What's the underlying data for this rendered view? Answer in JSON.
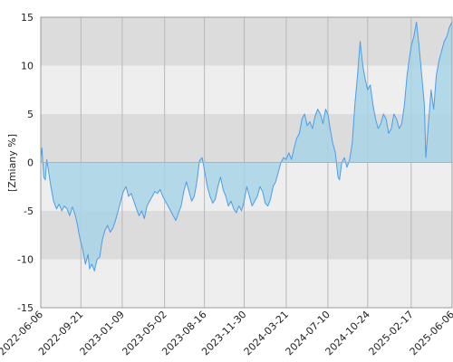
{
  "chart_data": {
    "type": "area",
    "ylabel": "[Zmiany %]",
    "ylim": [
      -15,
      15
    ],
    "y_ticks": [
      15,
      10,
      5,
      0,
      -5,
      -10,
      -15
    ],
    "x_ticks": [
      "2022-06-06",
      "2022-09-21",
      "2023-01-09",
      "2023-05-02",
      "2023-08-16",
      "2023-11-30",
      "2024-03-21",
      "2024-07-10",
      "2024-10-24",
      "2025-02-17",
      "2025-06-06"
    ],
    "x_range": [
      "2022-06-06",
      "2025-06-06"
    ],
    "grid": true,
    "colors": {
      "line": "#4d9de8",
      "fill": "#a8d4e6",
      "band_dark": "#dcdcdc",
      "band_light": "#eeeeee",
      "gridline": "#b8b8b8"
    },
    "series": [
      {
        "points": [
          [
            "2022-06-06",
            0.5
          ],
          [
            "2022-06-09",
            1.5
          ],
          [
            "2022-06-14",
            -1.5
          ],
          [
            "2022-06-18",
            -1.8
          ],
          [
            "2022-06-22",
            0.3
          ],
          [
            "2022-06-27",
            -1.0
          ],
          [
            "2022-07-03",
            -2.5
          ],
          [
            "2022-07-10",
            -4.0
          ],
          [
            "2022-07-18",
            -4.8
          ],
          [
            "2022-07-25",
            -4.3
          ],
          [
            "2022-08-01",
            -5.0
          ],
          [
            "2022-08-08",
            -4.5
          ],
          [
            "2022-08-15",
            -4.8
          ],
          [
            "2022-08-22",
            -5.5
          ],
          [
            "2022-08-29",
            -4.6
          ],
          [
            "2022-09-05",
            -5.3
          ],
          [
            "2022-09-12",
            -6.5
          ],
          [
            "2022-09-19",
            -8.0
          ],
          [
            "2022-09-26",
            -9.0
          ],
          [
            "2022-10-03",
            -10.5
          ],
          [
            "2022-10-10",
            -9.5
          ],
          [
            "2022-10-14",
            -11.0
          ],
          [
            "2022-10-20",
            -10.5
          ],
          [
            "2022-10-27",
            -11.2
          ],
          [
            "2022-11-03",
            -10.0
          ],
          [
            "2022-11-10",
            -9.8
          ],
          [
            "2022-11-17",
            -8.0
          ],
          [
            "2022-11-24",
            -7.0
          ],
          [
            "2022-12-01",
            -6.5
          ],
          [
            "2022-12-08",
            -7.2
          ],
          [
            "2022-12-15",
            -6.8
          ],
          [
            "2022-12-22",
            -6.0
          ],
          [
            "2022-12-29",
            -5.0
          ],
          [
            "2023-01-05",
            -4.0
          ],
          [
            "2023-01-12",
            -3.0
          ],
          [
            "2023-01-19",
            -2.5
          ],
          [
            "2023-01-26",
            -3.5
          ],
          [
            "2023-02-02",
            -3.2
          ],
          [
            "2023-02-09",
            -4.0
          ],
          [
            "2023-02-16",
            -4.8
          ],
          [
            "2023-02-23",
            -5.5
          ],
          [
            "2023-03-02",
            -5.0
          ],
          [
            "2023-03-09",
            -5.8
          ],
          [
            "2023-03-16",
            -4.5
          ],
          [
            "2023-03-23",
            -4.0
          ],
          [
            "2023-03-30",
            -3.5
          ],
          [
            "2023-04-06",
            -3.0
          ],
          [
            "2023-04-13",
            -3.2
          ],
          [
            "2023-04-20",
            -2.8
          ],
          [
            "2023-04-27",
            -3.5
          ],
          [
            "2023-05-04",
            -4.0
          ],
          [
            "2023-05-11",
            -4.5
          ],
          [
            "2023-05-18",
            -5.0
          ],
          [
            "2023-05-25",
            -5.5
          ],
          [
            "2023-06-01",
            -6.0
          ],
          [
            "2023-06-08",
            -5.2
          ],
          [
            "2023-06-15",
            -4.5
          ],
          [
            "2023-06-22",
            -3.0
          ],
          [
            "2023-06-29",
            -2.0
          ],
          [
            "2023-07-06",
            -3.0
          ],
          [
            "2023-07-13",
            -4.0
          ],
          [
            "2023-07-20",
            -3.5
          ],
          [
            "2023-07-27",
            -2.0
          ],
          [
            "2023-08-03",
            0.2
          ],
          [
            "2023-08-10",
            0.5
          ],
          [
            "2023-08-17",
            -1.0
          ],
          [
            "2023-08-24",
            -2.5
          ],
          [
            "2023-08-31",
            -3.5
          ],
          [
            "2023-09-07",
            -4.2
          ],
          [
            "2023-09-14",
            -3.8
          ],
          [
            "2023-09-21",
            -2.5
          ],
          [
            "2023-09-28",
            -1.5
          ],
          [
            "2023-10-05",
            -2.8
          ],
          [
            "2023-10-12",
            -3.5
          ],
          [
            "2023-10-19",
            -4.5
          ],
          [
            "2023-10-26",
            -4.0
          ],
          [
            "2023-11-02",
            -4.8
          ],
          [
            "2023-11-09",
            -5.2
          ],
          [
            "2023-11-16",
            -4.5
          ],
          [
            "2023-11-23",
            -5.0
          ],
          [
            "2023-11-30",
            -4.0
          ],
          [
            "2023-12-07",
            -2.5
          ],
          [
            "2023-12-14",
            -3.5
          ],
          [
            "2023-12-21",
            -4.5
          ],
          [
            "2023-12-28",
            -4.0
          ],
          [
            "2024-01-04",
            -3.5
          ],
          [
            "2024-01-11",
            -2.5
          ],
          [
            "2024-01-18",
            -3.0
          ],
          [
            "2024-01-25",
            -4.2
          ],
          [
            "2024-02-01",
            -4.5
          ],
          [
            "2024-02-08",
            -3.8
          ],
          [
            "2024-02-15",
            -2.5
          ],
          [
            "2024-02-22",
            -2.0
          ],
          [
            "2024-02-29",
            -1.0
          ],
          [
            "2024-03-07",
            0.0
          ],
          [
            "2024-03-14",
            0.5
          ],
          [
            "2024-03-21",
            0.3
          ],
          [
            "2024-03-28",
            1.0
          ],
          [
            "2024-04-04",
            0.3
          ],
          [
            "2024-04-11",
            1.5
          ],
          [
            "2024-04-18",
            2.5
          ],
          [
            "2024-04-25",
            3.0
          ],
          [
            "2024-05-02",
            4.5
          ],
          [
            "2024-05-09",
            5.0
          ],
          [
            "2024-05-16",
            3.8
          ],
          [
            "2024-05-23",
            4.2
          ],
          [
            "2024-05-30",
            3.5
          ],
          [
            "2024-06-06",
            4.8
          ],
          [
            "2024-06-13",
            5.5
          ],
          [
            "2024-06-20",
            5.0
          ],
          [
            "2024-06-27",
            4.0
          ],
          [
            "2024-07-04",
            5.5
          ],
          [
            "2024-07-10",
            5.0
          ],
          [
            "2024-07-16",
            3.5
          ],
          [
            "2024-07-23",
            2.0
          ],
          [
            "2024-07-30",
            1.0
          ],
          [
            "2024-08-06",
            -1.5
          ],
          [
            "2024-08-10",
            -1.8
          ],
          [
            "2024-08-16",
            0.0
          ],
          [
            "2024-08-23",
            0.5
          ],
          [
            "2024-08-30",
            -0.5
          ],
          [
            "2024-09-06",
            0.3
          ],
          [
            "2024-09-13",
            2.0
          ],
          [
            "2024-09-20",
            6.0
          ],
          [
            "2024-09-27",
            9.0
          ],
          [
            "2024-10-04",
            12.5
          ],
          [
            "2024-10-11",
            10.0
          ],
          [
            "2024-10-18",
            8.5
          ],
          [
            "2024-10-24",
            7.5
          ],
          [
            "2024-10-31",
            8.0
          ],
          [
            "2024-11-07",
            6.0
          ],
          [
            "2024-11-14",
            4.5
          ],
          [
            "2024-11-21",
            3.5
          ],
          [
            "2024-11-28",
            4.0
          ],
          [
            "2024-12-05",
            5.0
          ],
          [
            "2024-12-12",
            4.5
          ],
          [
            "2024-12-19",
            3.0
          ],
          [
            "2024-12-26",
            3.5
          ],
          [
            "2025-01-02",
            5.0
          ],
          [
            "2025-01-09",
            4.5
          ],
          [
            "2025-01-16",
            3.5
          ],
          [
            "2025-01-23",
            4.0
          ],
          [
            "2025-01-30",
            6.0
          ],
          [
            "2025-02-06",
            9.0
          ],
          [
            "2025-02-13",
            11.0
          ],
          [
            "2025-02-17",
            12.0
          ],
          [
            "2025-02-24",
            13.0
          ],
          [
            "2025-03-03",
            14.5
          ],
          [
            "2025-03-10",
            12.0
          ],
          [
            "2025-03-17",
            9.0
          ],
          [
            "2025-03-24",
            6.0
          ],
          [
            "2025-03-28",
            0.5
          ],
          [
            "2025-04-04",
            4.0
          ],
          [
            "2025-04-11",
            7.5
          ],
          [
            "2025-04-18",
            5.5
          ],
          [
            "2025-04-25",
            9.0
          ],
          [
            "2025-05-02",
            10.5
          ],
          [
            "2025-05-09",
            11.5
          ],
          [
            "2025-05-16",
            12.5
          ],
          [
            "2025-05-23",
            13.0
          ],
          [
            "2025-05-30",
            14.0
          ],
          [
            "2025-06-06",
            14.5
          ]
        ]
      }
    ]
  }
}
